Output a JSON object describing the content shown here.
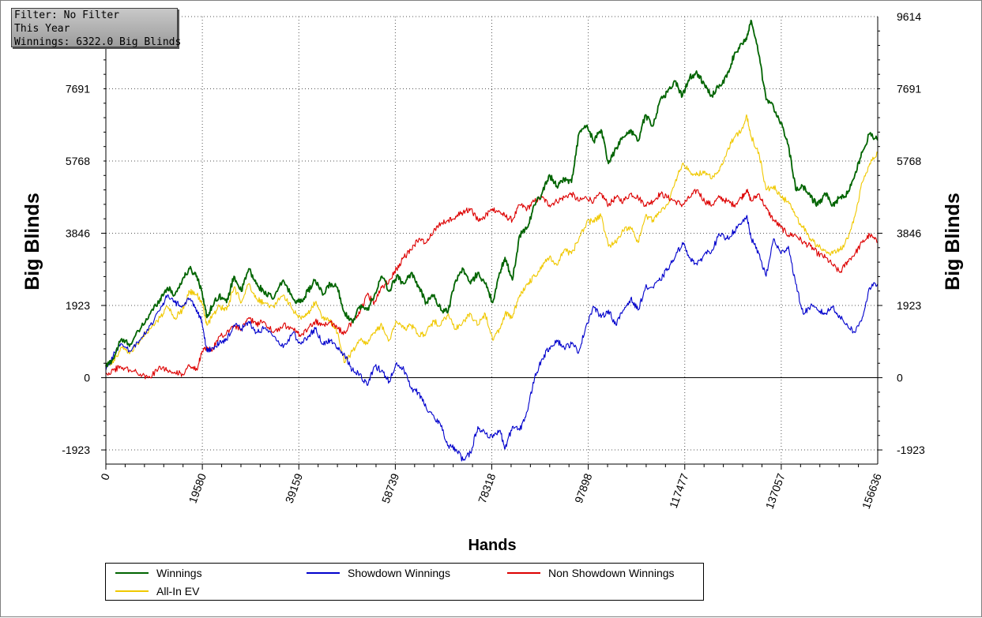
{
  "info_box": {
    "filter": "Filter: No Filter",
    "period": "This Year",
    "winnings": "Winnings: 6322.0 Big Blinds"
  },
  "chart_data": {
    "type": "line",
    "xlabel": "Hands",
    "ylabel": "Big Blinds",
    "xlim": [
      0,
      156636
    ],
    "ylim": [
      -2300,
      9614
    ],
    "x_ticks": [
      0,
      19580,
      39159,
      58739,
      78318,
      97898,
      117477,
      137057,
      156636
    ],
    "y_ticks": [
      -1923,
      0,
      1923,
      3846,
      5768,
      7691,
      9614
    ],
    "y_tick_labels_left": [
      "-1923",
      "0",
      "1923",
      "3846",
      "5768",
      "7691"
    ],
    "y_tick_labels_right": [
      "-1923",
      "0",
      "1923",
      "3846",
      "5768",
      "7691",
      "9614"
    ],
    "grid": true,
    "legend_position": "bottom",
    "series": [
      {
        "name": "Winnings",
        "color": "#006400",
        "x": [
          0,
          1500,
          3000,
          5000,
          7000,
          9000,
          11000,
          12500,
          14000,
          15500,
          17000,
          18500,
          19500,
          20500,
          21500,
          23000,
          24500,
          26000,
          27500,
          29000,
          30500,
          32000,
          34000,
          36000,
          38000,
          39500,
          41000,
          42500,
          44000,
          45500,
          47000,
          48500,
          50000,
          51500,
          53000,
          54500,
          56000,
          57500,
          59000,
          60500,
          62000,
          63500,
          65000,
          66500,
          68000,
          69500,
          71000,
          72500,
          74000,
          75500,
          77000,
          78500,
          80000,
          81000,
          82500,
          84000,
          85500,
          87000,
          88500,
          90000,
          91500,
          93000,
          94500,
          96000,
          97500,
          99000,
          100500,
          102000,
          103500,
          105000,
          106500,
          108000,
          109500,
          111000,
          112500,
          114000,
          115500,
          117000,
          118500,
          120000,
          121500,
          123000,
          124500,
          126000,
          127500,
          129000,
          130000,
          131000,
          132500,
          134000,
          135500,
          137000,
          138500,
          140000,
          141500,
          143000,
          144500,
          146000,
          147500,
          149000,
          150500,
          152000,
          153500,
          155000,
          156636
        ],
        "y": [
          300,
          500,
          1000,
          900,
          1300,
          1700,
          2100,
          2400,
          2200,
          2600,
          2900,
          2700,
          2300,
          1600,
          1900,
          2200,
          2000,
          2700,
          2300,
          2900,
          2500,
          2300,
          2100,
          2600,
          2100,
          2000,
          2300,
          2600,
          2200,
          2500,
          2400,
          1700,
          1500,
          1900,
          1800,
          2200,
          2700,
          2300,
          2700,
          2500,
          2800,
          2400,
          2000,
          2200,
          1800,
          1800,
          2600,
          2900,
          2500,
          2800,
          2500,
          2000,
          2800,
          3200,
          2600,
          3800,
          4000,
          4600,
          4900,
          5400,
          5100,
          5300,
          5200,
          6500,
          6700,
          6300,
          6600,
          5700,
          6100,
          6400,
          6600,
          6300,
          7000,
          6700,
          7400,
          7600,
          7900,
          7500,
          8000,
          8100,
          7800,
          7500,
          7800,
          8000,
          8600,
          8900,
          9000,
          9500,
          8600,
          7400,
          7200,
          6800,
          6200,
          5000,
          5100,
          4800,
          4600,
          4900,
          4600,
          4800,
          4900,
          5400,
          6000,
          6500,
          6322
        ]
      },
      {
        "name": "Showdown Winnings",
        "color": "#0000cc",
        "x": [
          0,
          1500,
          3000,
          5000,
          7000,
          9000,
          11000,
          12500,
          14000,
          15500,
          17000,
          18500,
          19500,
          20500,
          21500,
          23000,
          24500,
          26000,
          27500,
          29000,
          30500,
          32000,
          34000,
          36000,
          38000,
          39500,
          41000,
          42500,
          44000,
          45500,
          47000,
          48500,
          50000,
          51500,
          53000,
          54500,
          56000,
          57500,
          59000,
          60500,
          62000,
          63500,
          65000,
          66500,
          68000,
          69500,
          71000,
          72500,
          74000,
          75500,
          77000,
          78500,
          80000,
          81000,
          82500,
          84000,
          85500,
          87000,
          88500,
          90000,
          91500,
          93000,
          94500,
          96000,
          97500,
          99000,
          100500,
          102000,
          103500,
          105000,
          106500,
          108000,
          109500,
          111000,
          112500,
          114000,
          115500,
          117000,
          118500,
          120000,
          121500,
          123000,
          124500,
          126000,
          127500,
          129000,
          130000,
          131000,
          132500,
          134000,
          135500,
          137000,
          138500,
          140000,
          141500,
          143000,
          144500,
          146000,
          147500,
          149000,
          150500,
          152000,
          153500,
          155000,
          156636
        ],
        "y": [
          200,
          600,
          900,
          700,
          1000,
          1400,
          1800,
          2200,
          2000,
          1900,
          2100,
          1800,
          1500,
          700,
          800,
          900,
          1000,
          1400,
          1300,
          1500,
          1200,
          1300,
          1100,
          800,
          1200,
          900,
          1100,
          1300,
          900,
          1000,
          800,
          600,
          200,
          100,
          -200,
          300,
          200,
          -100,
          400,
          200,
          -300,
          -400,
          -800,
          -1000,
          -1300,
          -1800,
          -1900,
          -2200,
          -2000,
          -1300,
          -1500,
          -1600,
          -1400,
          -1900,
          -1300,
          -1400,
          -900,
          0,
          500,
          800,
          1000,
          800,
          900,
          700,
          1400,
          1900,
          1600,
          1800,
          1400,
          1800,
          2100,
          1800,
          2400,
          2400,
          2600,
          2900,
          3200,
          3600,
          3200,
          3000,
          3300,
          3400,
          3800,
          3700,
          3900,
          4100,
          4300,
          3700,
          3300,
          2700,
          3700,
          3300,
          3500,
          2500,
          1700,
          1900,
          1800,
          1700,
          1900,
          1600,
          1400,
          1200,
          1600,
          2400,
          2500
        ]
      },
      {
        "name": "Non Showdown Winnings",
        "color": "#dd0000",
        "x": [
          0,
          1500,
          3000,
          5000,
          7000,
          9000,
          11000,
          12500,
          14000,
          15500,
          17000,
          18500,
          19500,
          20500,
          21500,
          23000,
          24500,
          26000,
          27500,
          29000,
          30500,
          32000,
          34000,
          36000,
          38000,
          39500,
          41000,
          42500,
          44000,
          45500,
          47000,
          48500,
          50000,
          51500,
          53000,
          54500,
          56000,
          57500,
          59000,
          60500,
          62000,
          63500,
          65000,
          66500,
          68000,
          69500,
          71000,
          72500,
          74000,
          75500,
          77000,
          78500,
          80000,
          81000,
          82500,
          84000,
          85500,
          87000,
          88500,
          90000,
          91500,
          93000,
          94500,
          96000,
          97500,
          99000,
          100500,
          102000,
          103500,
          105000,
          106500,
          108000,
          109500,
          111000,
          112500,
          114000,
          115500,
          117000,
          118500,
          120000,
          121500,
          123000,
          124500,
          126000,
          127500,
          129000,
          130000,
          131000,
          132500,
          134000,
          135500,
          137000,
          138500,
          140000,
          141500,
          143000,
          144500,
          146000,
          147500,
          149000,
          150500,
          152000,
          153500,
          155000,
          156636
        ],
        "y": [
          100,
          200,
          300,
          200,
          100,
          0,
          300,
          200,
          150,
          100,
          300,
          200,
          700,
          800,
          700,
          1100,
          1200,
          1400,
          1300,
          1600,
          1400,
          1500,
          1200,
          1400,
          1300,
          1100,
          1300,
          1500,
          1400,
          1500,
          1300,
          1200,
          1500,
          1700,
          2200,
          2000,
          2400,
          2600,
          2900,
          3200,
          3400,
          3700,
          3600,
          3900,
          4100,
          4200,
          4300,
          4400,
          4500,
          4200,
          4300,
          4500,
          4400,
          4300,
          4200,
          4600,
          4500,
          4700,
          4800,
          4600,
          4700,
          4800,
          4900,
          4700,
          4800,
          4700,
          4900,
          4600,
          4800,
          4700,
          4900,
          4800,
          4600,
          4700,
          4900,
          4800,
          4700,
          4600,
          4800,
          5000,
          4700,
          4600,
          4800,
          4700,
          4600,
          4800,
          5000,
          4700,
          4900,
          4500,
          4200,
          4000,
          3800,
          3800,
          3600,
          3500,
          3300,
          3200,
          3000,
          2800,
          3100,
          3300,
          3600,
          3800,
          3600
        ]
      },
      {
        "name": "All-In EV",
        "color": "#f0c800",
        "x": [
          0,
          1500,
          3000,
          5000,
          7000,
          9000,
          11000,
          12500,
          14000,
          15500,
          17000,
          18500,
          19500,
          20500,
          21500,
          23000,
          24500,
          26000,
          27500,
          29000,
          30500,
          32000,
          34000,
          36000,
          38000,
          39500,
          41000,
          42500,
          44000,
          45500,
          47000,
          48500,
          50000,
          51500,
          53000,
          54500,
          56000,
          57500,
          59000,
          60500,
          62000,
          63500,
          65000,
          66500,
          68000,
          69500,
          71000,
          72500,
          74000,
          75500,
          77000,
          78500,
          80000,
          81000,
          82500,
          84000,
          85500,
          87000,
          88500,
          90000,
          91500,
          93000,
          94500,
          96000,
          97500,
          99000,
          100500,
          102000,
          103500,
          105000,
          106500,
          108000,
          109500,
          111000,
          112500,
          114000,
          115500,
          117000,
          118500,
          120000,
          121500,
          123000,
          124500,
          126000,
          127500,
          129000,
          130000,
          131000,
          132500,
          134000,
          135500,
          137000,
          138500,
          140000,
          141500,
          143000,
          144500,
          146000,
          147500,
          149000,
          150500,
          152000,
          153500,
          155000,
          156636
        ],
        "y": [
          300,
          400,
          800,
          700,
          1000,
          1300,
          1600,
          1900,
          1600,
          1800,
          2300,
          2200,
          2000,
          1400,
          1600,
          1900,
          1800,
          2400,
          2000,
          2500,
          2100,
          2000,
          1900,
          2200,
          1800,
          1600,
          1700,
          2000,
          1600,
          1500,
          1200,
          400,
          700,
          1000,
          900,
          1200,
          1400,
          1000,
          1500,
          1300,
          1400,
          1100,
          1200,
          1500,
          1400,
          1700,
          1300,
          1500,
          1700,
          1400,
          1700,
          1000,
          1300,
          1700,
          1600,
          2200,
          2500,
          2700,
          3000,
          3200,
          3000,
          3400,
          3300,
          3700,
          4100,
          4200,
          4300,
          3500,
          3600,
          3900,
          4000,
          3600,
          4300,
          4200,
          4400,
          4600,
          5200,
          5700,
          5500,
          5400,
          5500,
          5300,
          5500,
          6000,
          6400,
          6600,
          7000,
          6400,
          6000,
          5000,
          5100,
          4800,
          4700,
          4300,
          4000,
          3700,
          3500,
          3400,
          3300,
          3400,
          3700,
          4300,
          5200,
          5700,
          6000
        ]
      }
    ]
  },
  "legend": {
    "items": [
      {
        "label": "Winnings",
        "color": "#006400"
      },
      {
        "label": "Showdown Winnings",
        "color": "#0000cc"
      },
      {
        "label": "Non Showdown Winnings",
        "color": "#dd0000"
      },
      {
        "label": "All-In EV",
        "color": "#f0c800"
      }
    ]
  }
}
